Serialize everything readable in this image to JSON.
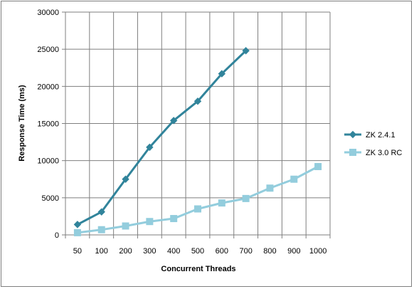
{
  "chart_data": {
    "type": "line",
    "title": "",
    "xlabel": "Concurrent Threads",
    "ylabel": "Response Time (ms)",
    "categories": [
      "50",
      "100",
      "200",
      "300",
      "400",
      "500",
      "600",
      "700",
      "800",
      "900",
      "1000"
    ],
    "ylim": [
      0,
      30000
    ],
    "yticks": [
      0,
      5000,
      10000,
      15000,
      20000,
      25000,
      30000
    ],
    "yticklabels": [
      "0",
      "5000",
      "10000",
      "15000",
      "20000",
      "25000",
      "30000"
    ],
    "grid": true,
    "legend_position": "right",
    "series": [
      {
        "name": "ZK 2.4.1",
        "marker": "diamond",
        "color": "#31849b",
        "values": [
          1400,
          3100,
          7500,
          11800,
          15400,
          18000,
          21700,
          24800,
          null,
          null,
          null
        ]
      },
      {
        "name": "ZK 3.0 RC",
        "marker": "square",
        "color": "#93cddd",
        "values": [
          300,
          700,
          1200,
          1800,
          2200,
          3500,
          4300,
          4900,
          6300,
          7500,
          9200
        ]
      }
    ]
  }
}
